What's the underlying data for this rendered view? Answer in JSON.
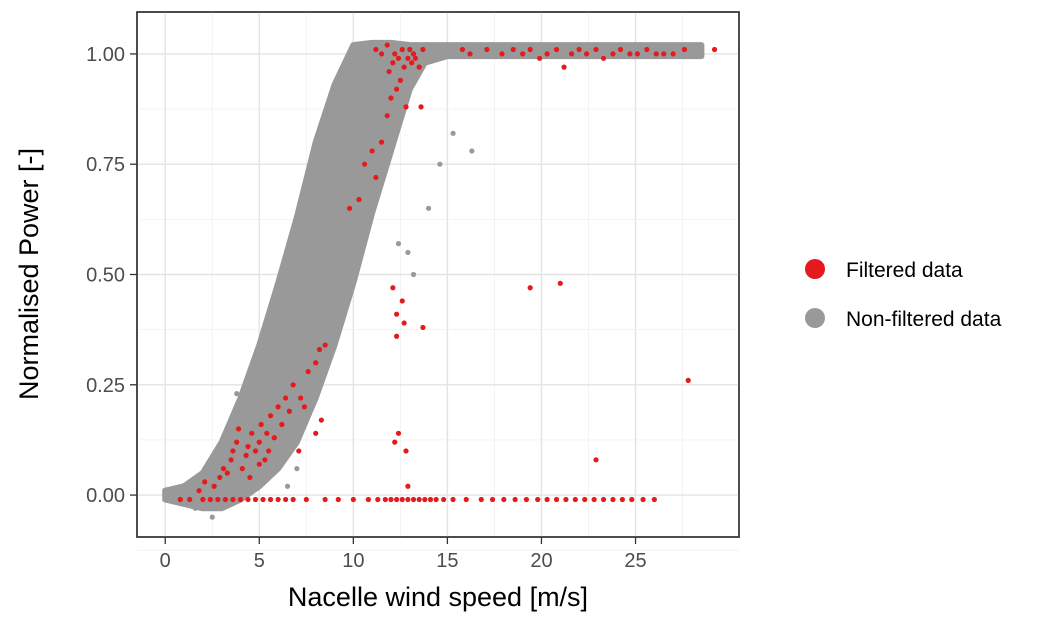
{
  "chart_data": {
    "type": "scatter",
    "title": "",
    "xlabel": "Nacelle wind speed [m/s]",
    "ylabel": "Normalised Power [-]",
    "xlim": [
      -1.5,
      30.5
    ],
    "ylim": [
      -0.095,
      1.095
    ],
    "x_ticks": [
      0,
      5,
      10,
      15,
      20,
      25
    ],
    "x_tick_labels": [
      "0",
      "5",
      "10",
      "15",
      "20",
      "25"
    ],
    "y_ticks": [
      0,
      0.25,
      0.5,
      0.75,
      1.0
    ],
    "y_tick_labels": [
      "0.00",
      "0.25",
      "0.50",
      "0.75",
      "1.00"
    ],
    "grid": true,
    "legend_position": "right",
    "series": [
      {
        "name": "Non-filtered data",
        "color": "#999999",
        "description_of_shape": "dense band",
        "band": {
          "x": [
            0,
            1,
            2,
            3,
            4,
            5,
            6,
            7,
            8,
            9,
            10,
            11,
            12,
            13,
            13.8,
            15,
            20,
            25,
            28.5
          ],
          "y_low": [
            -0.01,
            -0.02,
            -0.03,
            -0.03,
            -0.01,
            0.02,
            0.06,
            0.12,
            0.22,
            0.34,
            0.48,
            0.64,
            0.78,
            0.92,
            0.98,
            0.995,
            0.995,
            0.995,
            0.995
          ],
          "y_high": [
            0.01,
            0.02,
            0.05,
            0.12,
            0.22,
            0.34,
            0.48,
            0.63,
            0.8,
            0.93,
            1.02,
            1.025,
            1.025,
            1.02,
            1.02,
            1.02,
            1.02,
            1.02,
            1.02
          ]
        },
        "scatter_points": [
          [
            3.8,
            0.23
          ],
          [
            4.5,
            0.27
          ],
          [
            5.2,
            0.36
          ],
          [
            6.0,
            0.45
          ],
          [
            12.4,
            0.57
          ],
          [
            12.9,
            0.55
          ],
          [
            13.2,
            0.5
          ],
          [
            14.0,
            0.65
          ],
          [
            14.6,
            0.75
          ],
          [
            15.3,
            0.82
          ],
          [
            16.3,
            0.78
          ],
          [
            6.5,
            0.02
          ],
          [
            7.0,
            0.06
          ],
          [
            2.5,
            -0.05
          ],
          [
            1.6,
            -0.03
          ]
        ]
      },
      {
        "name": "Filtered data",
        "color": "#e41a1c",
        "points": [
          [
            1.8,
            0.01
          ],
          [
            2.1,
            0.03
          ],
          [
            2.6,
            0.02
          ],
          [
            2.9,
            0.04
          ],
          [
            3.1,
            0.06
          ],
          [
            3.3,
            0.05
          ],
          [
            3.5,
            0.08
          ],
          [
            3.6,
            0.1
          ],
          [
            3.8,
            0.12
          ],
          [
            3.9,
            0.15
          ],
          [
            4.1,
            0.06
          ],
          [
            4.3,
            0.09
          ],
          [
            4.4,
            0.11
          ],
          [
            4.6,
            0.14
          ],
          [
            4.8,
            0.1
          ],
          [
            5.0,
            0.12
          ],
          [
            5.1,
            0.16
          ],
          [
            5.3,
            0.08
          ],
          [
            5.4,
            0.14
          ],
          [
            5.6,
            0.18
          ],
          [
            5.8,
            0.13
          ],
          [
            6.0,
            0.2
          ],
          [
            6.2,
            0.16
          ],
          [
            6.4,
            0.22
          ],
          [
            6.6,
            0.19
          ],
          [
            4.5,
            0.04
          ],
          [
            5.0,
            0.07
          ],
          [
            5.5,
            0.1
          ],
          [
            6.8,
            0.25
          ],
          [
            7.2,
            0.22
          ],
          [
            7.6,
            0.28
          ],
          [
            8.0,
            0.3
          ],
          [
            8.2,
            0.33
          ],
          [
            8.5,
            0.34
          ],
          [
            8.3,
            0.17
          ],
          [
            8.0,
            0.14
          ],
          [
            7.4,
            0.2
          ],
          [
            7.1,
            0.1
          ],
          [
            9.8,
            0.65
          ],
          [
            10.3,
            0.67
          ],
          [
            10.6,
            0.75
          ],
          [
            11.0,
            0.78
          ],
          [
            11.2,
            0.72
          ],
          [
            11.5,
            0.8
          ],
          [
            11.8,
            0.86
          ],
          [
            12.0,
            0.9
          ],
          [
            12.3,
            0.92
          ],
          [
            12.5,
            0.94
          ],
          [
            12.7,
            0.97
          ],
          [
            12.9,
            0.99
          ],
          [
            13.2,
            1.0
          ],
          [
            13.5,
            0.97
          ],
          [
            11.2,
            1.01
          ],
          [
            11.5,
            1.0
          ],
          [
            11.8,
            1.02
          ],
          [
            12.2,
            1.0
          ],
          [
            12.6,
            1.01
          ],
          [
            13.0,
            1.01
          ],
          [
            13.3,
            0.99
          ],
          [
            13.7,
            1.01
          ],
          [
            12.1,
            0.98
          ],
          [
            11.9,
            0.96
          ],
          [
            12.4,
            0.99
          ],
          [
            13.1,
            0.98
          ],
          [
            12.8,
            0.88
          ],
          [
            13.6,
            0.88
          ],
          [
            12.1,
            0.47
          ],
          [
            12.3,
            0.41
          ],
          [
            12.6,
            0.44
          ],
          [
            12.7,
            0.39
          ],
          [
            12.3,
            0.36
          ],
          [
            13.7,
            0.38
          ],
          [
            12.2,
            0.12
          ],
          [
            12.4,
            0.14
          ],
          [
            12.8,
            0.1
          ],
          [
            12.9,
            0.02
          ],
          [
            19.4,
            0.47
          ],
          [
            21.0,
            0.48
          ],
          [
            22.9,
            0.08
          ],
          [
            27.8,
            0.26
          ],
          [
            0.8,
            -0.01
          ],
          [
            1.3,
            -0.01
          ],
          [
            2.0,
            -0.01
          ],
          [
            2.4,
            -0.01
          ],
          [
            2.8,
            -0.01
          ],
          [
            3.2,
            -0.01
          ],
          [
            3.6,
            -0.01
          ],
          [
            4.0,
            -0.01
          ],
          [
            4.4,
            -0.01
          ],
          [
            4.8,
            -0.01
          ],
          [
            5.2,
            -0.01
          ],
          [
            5.6,
            -0.01
          ],
          [
            6.0,
            -0.01
          ],
          [
            6.4,
            -0.01
          ],
          [
            6.8,
            -0.01
          ],
          [
            7.5,
            -0.01
          ],
          [
            8.5,
            -0.01
          ],
          [
            9.2,
            -0.01
          ],
          [
            10.0,
            -0.01
          ],
          [
            10.8,
            -0.01
          ],
          [
            11.3,
            -0.01
          ],
          [
            11.7,
            -0.01
          ],
          [
            12.0,
            -0.01
          ],
          [
            12.3,
            -0.01
          ],
          [
            12.6,
            -0.01
          ],
          [
            12.9,
            -0.01
          ],
          [
            13.2,
            -0.01
          ],
          [
            13.5,
            -0.01
          ],
          [
            13.8,
            -0.01
          ],
          [
            14.1,
            -0.01
          ],
          [
            14.4,
            -0.01
          ],
          [
            14.8,
            -0.01
          ],
          [
            15.3,
            -0.01
          ],
          [
            16.0,
            -0.01
          ],
          [
            16.8,
            -0.01
          ],
          [
            17.4,
            -0.01
          ],
          [
            18.0,
            -0.01
          ],
          [
            18.6,
            -0.01
          ],
          [
            19.2,
            -0.01
          ],
          [
            19.8,
            -0.01
          ],
          [
            20.3,
            -0.01
          ],
          [
            20.8,
            -0.01
          ],
          [
            21.3,
            -0.01
          ],
          [
            21.8,
            -0.01
          ],
          [
            22.3,
            -0.01
          ],
          [
            22.8,
            -0.01
          ],
          [
            23.3,
            -0.01
          ],
          [
            23.8,
            -0.01
          ],
          [
            24.3,
            -0.01
          ],
          [
            24.8,
            -0.01
          ],
          [
            25.4,
            -0.01
          ],
          [
            26.0,
            -0.01
          ],
          [
            17.9,
            1.0
          ],
          [
            18.5,
            1.01
          ],
          [
            19.0,
            1.0
          ],
          [
            19.4,
            1.01
          ],
          [
            19.9,
            0.99
          ],
          [
            20.3,
            1.0
          ],
          [
            20.8,
            1.01
          ],
          [
            21.2,
            0.97
          ],
          [
            21.6,
            1.0
          ],
          [
            22.0,
            1.01
          ],
          [
            22.4,
            1.0
          ],
          [
            22.9,
            1.01
          ],
          [
            23.3,
            0.99
          ],
          [
            23.8,
            1.0
          ],
          [
            24.2,
            1.01
          ],
          [
            24.7,
            1.0
          ],
          [
            25.1,
            1.0
          ],
          [
            25.6,
            1.01
          ],
          [
            26.1,
            1.0
          ],
          [
            26.5,
            1.0
          ],
          [
            27.0,
            1.0
          ],
          [
            27.6,
            1.01
          ],
          [
            29.2,
            1.01
          ],
          [
            15.8,
            1.01
          ],
          [
            16.2,
            1.0
          ],
          [
            17.1,
            1.01
          ]
        ]
      }
    ],
    "legend": [
      {
        "label": "Filtered data",
        "color": "#e41a1c"
      },
      {
        "label": "Non-filtered data",
        "color": "#999999"
      }
    ]
  }
}
